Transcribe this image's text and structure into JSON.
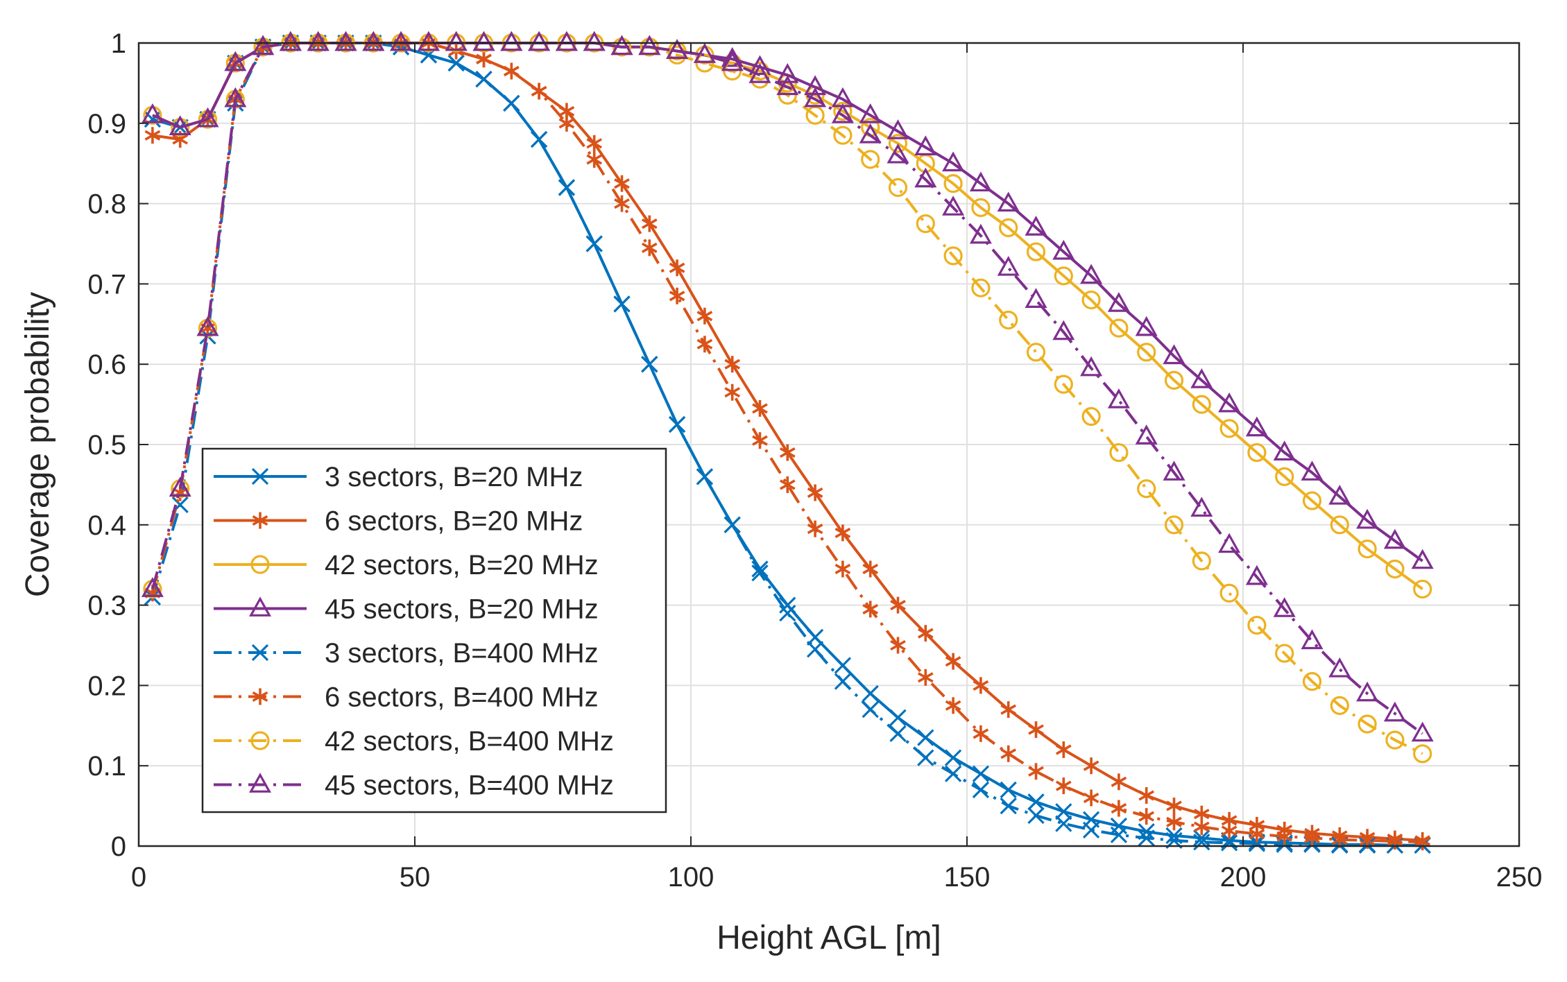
{
  "chart_data": {
    "type": "line",
    "title": "",
    "xlabel": "Height AGL [m]",
    "ylabel": "Coverage probability",
    "xlim": [
      0,
      250
    ],
    "ylim": [
      0,
      1
    ],
    "xticks": [
      0,
      50,
      100,
      150,
      200,
      250
    ],
    "yticks": [
      0,
      0.1,
      0.2,
      0.3,
      0.4,
      0.5,
      0.6,
      0.7,
      0.8,
      0.9,
      1
    ],
    "xtick_labels": [
      "0",
      "50",
      "100",
      "150",
      "200",
      "250"
    ],
    "ytick_labels": [
      "0",
      "0.1",
      "0.2",
      "0.3",
      "0.4",
      "0.5",
      "0.6",
      "0.7",
      "0.8",
      "0.9",
      "1"
    ],
    "grid": true,
    "legend_position": "lower-left",
    "x": [
      2.5,
      7.5,
      12.5,
      17.5,
      22.5,
      27.5,
      32.5,
      37.5,
      42.5,
      47.5,
      52.5,
      57.5,
      62.5,
      67.5,
      72.5,
      77.5,
      82.5,
      87.5,
      92.5,
      97.5,
      102.5,
      107.5,
      112.5,
      117.5,
      122.5,
      127.5,
      132.5,
      137.5,
      142.5,
      147.5,
      152.5,
      157.5,
      162.5,
      167.5,
      172.5,
      177.5,
      182.5,
      187.5,
      192.5,
      197.5,
      202.5,
      207.5,
      212.5,
      217.5,
      222.5,
      227.5,
      232.5
    ],
    "series": [
      {
        "name": "3 sectors, B=20 MHz",
        "color": "#0072BD",
        "dash": "solid",
        "marker": "x",
        "values": [
          0.905,
          0.895,
          0.905,
          0.975,
          0.995,
          1.0,
          1.0,
          1.0,
          1.0,
          0.995,
          0.985,
          0.975,
          0.955,
          0.925,
          0.88,
          0.82,
          0.75,
          0.675,
          0.6,
          0.525,
          0.46,
          0.4,
          0.345,
          0.3,
          0.26,
          0.225,
          0.19,
          0.16,
          0.135,
          0.11,
          0.09,
          0.07,
          0.055,
          0.043,
          0.033,
          0.025,
          0.018,
          0.013,
          0.01,
          0.007,
          0.005,
          0.004,
          0.003,
          0.002,
          0.002,
          0.001,
          0.001
        ]
      },
      {
        "name": "6 sectors, B=20 MHz",
        "color": "#D95319",
        "dash": "solid",
        "marker": "asterisk",
        "values": [
          0.885,
          0.88,
          0.905,
          0.975,
          0.995,
          1.0,
          1.0,
          1.0,
          1.0,
          1.0,
          1.0,
          0.99,
          0.98,
          0.965,
          0.94,
          0.915,
          0.875,
          0.825,
          0.775,
          0.72,
          0.66,
          0.6,
          0.545,
          0.49,
          0.44,
          0.39,
          0.345,
          0.3,
          0.265,
          0.23,
          0.2,
          0.17,
          0.145,
          0.12,
          0.1,
          0.08,
          0.063,
          0.05,
          0.04,
          0.032,
          0.026,
          0.02,
          0.016,
          0.013,
          0.011,
          0.009,
          0.007
        ]
      },
      {
        "name": "42 sectors, B=20 MHz",
        "color": "#EDB120",
        "dash": "solid",
        "marker": "circle",
        "values": [
          0.91,
          0.895,
          0.905,
          0.975,
          0.995,
          1.0,
          1.0,
          1.0,
          1.0,
          1.0,
          1.0,
          1.0,
          1.0,
          1.0,
          1.0,
          1.0,
          1.0,
          0.995,
          0.995,
          0.99,
          0.985,
          0.975,
          0.965,
          0.95,
          0.935,
          0.915,
          0.895,
          0.875,
          0.85,
          0.825,
          0.795,
          0.77,
          0.74,
          0.71,
          0.68,
          0.645,
          0.615,
          0.58,
          0.55,
          0.52,
          0.49,
          0.46,
          0.43,
          0.4,
          0.37,
          0.345,
          0.32
        ]
      },
      {
        "name": "45 sectors, B=20 MHz",
        "color": "#7E2F8E",
        "dash": "solid",
        "marker": "triangle",
        "values": [
          0.91,
          0.895,
          0.905,
          0.975,
          0.995,
          1.0,
          1.0,
          1.0,
          1.0,
          1.0,
          1.0,
          1.0,
          1.0,
          1.0,
          1.0,
          1.0,
          1.0,
          0.995,
          0.995,
          0.99,
          0.985,
          0.98,
          0.97,
          0.96,
          0.945,
          0.93,
          0.91,
          0.89,
          0.87,
          0.85,
          0.825,
          0.8,
          0.77,
          0.74,
          0.71,
          0.675,
          0.645,
          0.61,
          0.58,
          0.55,
          0.52,
          0.49,
          0.465,
          0.435,
          0.405,
          0.38,
          0.355
        ]
      },
      {
        "name": "3 sectors, B=400 MHz",
        "color": "#0072BD",
        "dash": "dash-dot",
        "marker": "x",
        "values": [
          0.31,
          0.425,
          0.635,
          0.925,
          0.995,
          1.0,
          1.0,
          1.0,
          1.0,
          0.995,
          0.985,
          0.975,
          0.955,
          0.925,
          0.88,
          0.82,
          0.75,
          0.675,
          0.6,
          0.525,
          0.46,
          0.4,
          0.34,
          0.29,
          0.245,
          0.205,
          0.17,
          0.14,
          0.11,
          0.09,
          0.07,
          0.05,
          0.038,
          0.028,
          0.02,
          0.014,
          0.01,
          0.007,
          0.005,
          0.004,
          0.003,
          0.002,
          0.002,
          0.001,
          0.001,
          0.001,
          0.001
        ]
      },
      {
        "name": "6 sectors, B=400 MHz",
        "color": "#D95319",
        "dash": "dash-dot",
        "marker": "asterisk",
        "values": [
          0.315,
          0.44,
          0.645,
          0.93,
          0.995,
          1.0,
          1.0,
          1.0,
          1.0,
          1.0,
          1.0,
          0.99,
          0.98,
          0.965,
          0.94,
          0.9,
          0.855,
          0.8,
          0.745,
          0.685,
          0.625,
          0.565,
          0.505,
          0.45,
          0.395,
          0.345,
          0.295,
          0.25,
          0.21,
          0.175,
          0.14,
          0.115,
          0.093,
          0.075,
          0.06,
          0.047,
          0.037,
          0.03,
          0.024,
          0.019,
          0.015,
          0.012,
          0.01,
          0.008,
          0.007,
          0.006,
          0.005
        ]
      },
      {
        "name": "42 sectors, B=400 MHz",
        "color": "#EDB120",
        "dash": "dash-dot",
        "marker": "circle",
        "values": [
          0.32,
          0.445,
          0.645,
          0.93,
          0.995,
          1.0,
          1.0,
          1.0,
          1.0,
          1.0,
          1.0,
          1.0,
          1.0,
          1.0,
          1.0,
          1.0,
          1.0,
          0.995,
          0.995,
          0.985,
          0.975,
          0.965,
          0.955,
          0.935,
          0.91,
          0.885,
          0.855,
          0.82,
          0.775,
          0.735,
          0.695,
          0.655,
          0.615,
          0.575,
          0.535,
          0.49,
          0.445,
          0.4,
          0.355,
          0.315,
          0.275,
          0.24,
          0.205,
          0.175,
          0.152,
          0.132,
          0.115
        ]
      },
      {
        "name": "45 sectors, B=400 MHz",
        "color": "#7E2F8E",
        "dash": "dash-dot",
        "marker": "triangle",
        "values": [
          0.32,
          0.445,
          0.645,
          0.93,
          0.995,
          1.0,
          1.0,
          1.0,
          1.0,
          1.0,
          1.0,
          1.0,
          1.0,
          1.0,
          1.0,
          1.0,
          1.0,
          0.995,
          0.995,
          0.99,
          0.985,
          0.975,
          0.96,
          0.945,
          0.93,
          0.91,
          0.885,
          0.86,
          0.83,
          0.795,
          0.76,
          0.72,
          0.68,
          0.64,
          0.595,
          0.555,
          0.51,
          0.465,
          0.42,
          0.375,
          0.335,
          0.295,
          0.255,
          0.22,
          0.19,
          0.165,
          0.14
        ]
      }
    ]
  }
}
